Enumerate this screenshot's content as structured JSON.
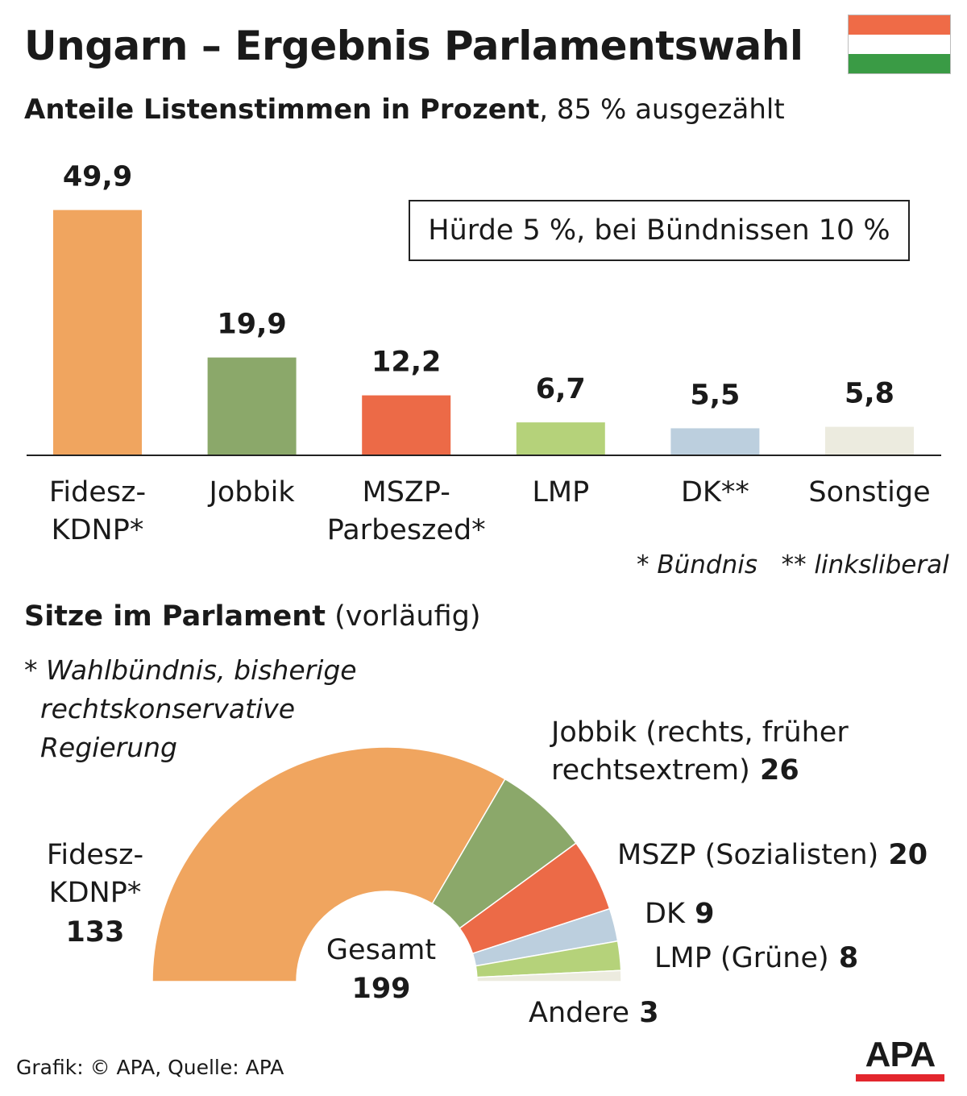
{
  "title": "Ungarn – Ergebnis Parlamentswahl",
  "flag_colors": [
    "#ef6b47",
    "#ffffff",
    "#3a9b45"
  ],
  "subtitle": {
    "bold": "Anteile Listenstimmen in Prozent",
    "rest": ", 85 % ausgezählt"
  },
  "hurdle_note": "Hürde 5 %, bei Bündnissen 10 %",
  "footnotes": "* Bündnis   ** linksliberal",
  "seats_title": {
    "bold": "Sitze im Parlament",
    "rest": " (vorläufig)"
  },
  "seats_note": [
    "* Wahlbündnis, bisherige",
    "rechtskonservative",
    "Regierung"
  ],
  "credit": "Grafik: © APA, Quelle: APA",
  "logo": "APA",
  "chart_data": [
    {
      "type": "bar",
      "categories": [
        "Fidesz-KDNP*",
        "Jobbik",
        "MSZP-Parbeszed*",
        "LMP",
        "DK**",
        "Sonstige"
      ],
      "category_lines": [
        [
          "Fidesz-",
          "KDNP*"
        ],
        [
          "Jobbik"
        ],
        [
          "MSZP-",
          "Parbeszed*"
        ],
        [
          "LMP"
        ],
        [
          "DK**"
        ],
        [
          "Sonstige"
        ]
      ],
      "values": [
        49.9,
        19.9,
        12.2,
        6.7,
        5.5,
        5.8
      ],
      "value_labels": [
        "49,9",
        "19,9",
        "12,2",
        "6,7",
        "5,5",
        "5,8"
      ],
      "colors": [
        "#f0a55f",
        "#8ba86a",
        "#ec6a47",
        "#b5d27a",
        "#bccfde",
        "#ecebdf"
      ],
      "ylim": [
        0,
        50
      ],
      "grid": false
    },
    {
      "type": "pie",
      "variant": "half-donut",
      "series": [
        {
          "name": "Fidesz-KDNP*",
          "value": 133,
          "color": "#f0a55f",
          "label_lines": [
            "Fidesz-",
            "KDNP*"
          ],
          "value_label": "133"
        },
        {
          "name": "Jobbik (rechts, früher rechtsextrem)",
          "value": 26,
          "color": "#8ba86a",
          "label_lines": [
            "Jobbik (rechts, früher",
            "rechtsextrem)"
          ],
          "value_label": "26"
        },
        {
          "name": "MSZP (Sozialisten)",
          "value": 20,
          "color": "#ec6a47",
          "label_lines": [
            "MSZP (Sozialisten)"
          ],
          "value_label": "20"
        },
        {
          "name": "DK",
          "value": 9,
          "color": "#bccfde",
          "label_lines": [
            "DK"
          ],
          "value_label": "9"
        },
        {
          "name": "LMP (Grüne)",
          "value": 8,
          "color": "#b5d27a",
          "label_lines": [
            "LMP (Grüne)"
          ],
          "value_label": "8"
        },
        {
          "name": "Andere",
          "value": 3,
          "color": "#ecebdf",
          "label_lines": [
            "Andere"
          ],
          "value_label": "3"
        }
      ],
      "center_label": "Gesamt",
      "total": 199
    }
  ]
}
